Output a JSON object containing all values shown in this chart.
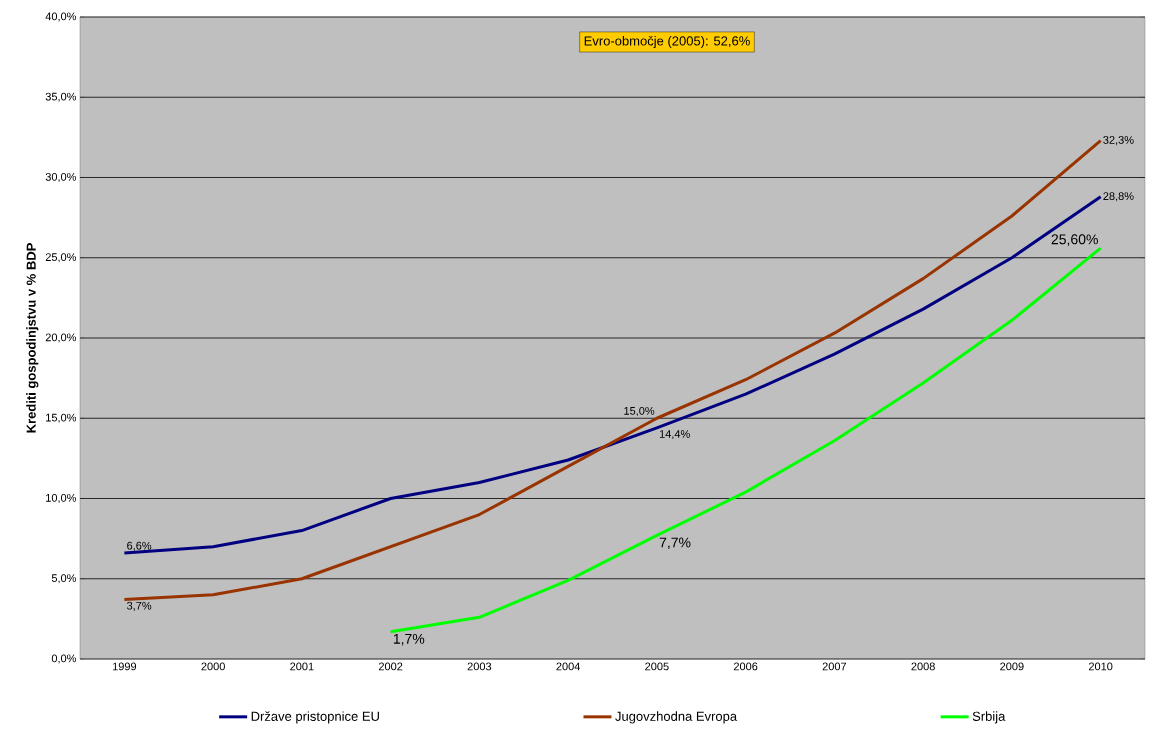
{
  "chart_data": {
    "type": "line",
    "ylabel": "Krediti gospodinjstvu v % BDP",
    "categories": [
      "1999",
      "2000",
      "2001",
      "2002",
      "2003",
      "2004",
      "2005",
      "2006",
      "2007",
      "2008",
      "2009",
      "2010"
    ],
    "series": [
      {
        "name": "Države pristopnice EU",
        "color": "#000080",
        "values": [
          6.6,
          7.0,
          8.0,
          10.0,
          11.0,
          12.4,
          14.4,
          16.5,
          19.0,
          21.8,
          25.0,
          28.8
        ],
        "value_labels": [
          "6,6%",
          null,
          null,
          null,
          null,
          null,
          "14,4%",
          null,
          null,
          null,
          null,
          "28,8%"
        ]
      },
      {
        "name": "Jugovzhodna Evropa",
        "color": "#993300",
        "values": [
          3.7,
          4.0,
          5.0,
          7.0,
          9.0,
          12.0,
          15.0,
          17.4,
          20.3,
          23.7,
          27.6,
          32.3
        ],
        "value_labels": [
          "3,7%",
          null,
          null,
          null,
          null,
          null,
          "15,0%",
          null,
          null,
          null,
          null,
          "32,3%"
        ]
      },
      {
        "name": "Srbija",
        "color": "#00ff00",
        "values": [
          null,
          null,
          null,
          1.7,
          2.6,
          4.9,
          7.7,
          10.4,
          13.6,
          17.2,
          21.1,
          25.6
        ],
        "value_labels": [
          null,
          null,
          null,
          "1,7%",
          null,
          null,
          "7,7%",
          null,
          null,
          null,
          null,
          "25,60%"
        ]
      }
    ],
    "ylim": [
      0,
      40
    ],
    "yticks": [
      {
        "value": 0,
        "label": "0,0%"
      },
      {
        "value": 5,
        "label": "5,0%"
      },
      {
        "value": 10,
        "label": "10,0%"
      },
      {
        "value": 15,
        "label": "15,0%"
      },
      {
        "value": 20,
        "label": "20,0%"
      },
      {
        "value": 25,
        "label": "25,0%"
      },
      {
        "value": 30,
        "label": "30,0%"
      },
      {
        "value": 35,
        "label": "35,0%"
      },
      {
        "value": 40,
        "label": "40,0%"
      }
    ],
    "annotations": [
      "Evro-območje (2005): 52,6%"
    ],
    "grid": "y",
    "legend": "bottom"
  }
}
